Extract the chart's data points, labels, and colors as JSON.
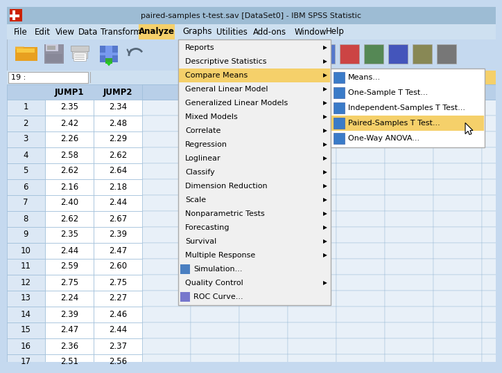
{
  "title_bar": "paired-samples t-test.sav [DataSet0] - IBM SPSS Statistic",
  "title_bar_bg": "#9dbcd4",
  "menubar_items": [
    "File",
    "Edit",
    "View",
    "Data",
    "Transform",
    "Analyze",
    "Graphs",
    "Utilities",
    "Add-ons",
    "Window",
    "Help"
  ],
  "menubar_x": [
    10,
    40,
    70,
    103,
    135,
    193,
    253,
    302,
    355,
    415,
    460
  ],
  "analyze_menu_items": [
    {
      "label": "Reports",
      "has_arrow": true,
      "icon": false
    },
    {
      "label": "Descriptive Statistics",
      "has_arrow": true,
      "icon": false
    },
    {
      "label": "Compare Means",
      "has_arrow": true,
      "highlighted": true,
      "icon": false
    },
    {
      "label": "General Linear Model",
      "has_arrow": true,
      "icon": false
    },
    {
      "label": "Generalized Linear Models",
      "has_arrow": true,
      "icon": false
    },
    {
      "label": "Mixed Models",
      "has_arrow": true,
      "icon": false
    },
    {
      "label": "Correlate",
      "has_arrow": true,
      "icon": false
    },
    {
      "label": "Regression",
      "has_arrow": true,
      "icon": false
    },
    {
      "label": "Loglinear",
      "has_arrow": true,
      "icon": false
    },
    {
      "label": "Classify",
      "has_arrow": true,
      "icon": false
    },
    {
      "label": "Dimension Reduction",
      "has_arrow": true,
      "icon": false
    },
    {
      "label": "Scale",
      "has_arrow": true,
      "icon": false
    },
    {
      "label": "Nonparametric Tests",
      "has_arrow": true,
      "icon": false
    },
    {
      "label": "Forecasting",
      "has_arrow": true,
      "icon": false
    },
    {
      "label": "Survival",
      "has_arrow": true,
      "icon": false
    },
    {
      "label": "Multiple Response",
      "has_arrow": true,
      "icon": false
    },
    {
      "label": "Simulation...",
      "has_arrow": false,
      "icon": true,
      "icon_color": "#4a7fc1"
    },
    {
      "label": "Quality Control",
      "has_arrow": true,
      "icon": false
    },
    {
      "label": "ROC Curve...",
      "has_arrow": false,
      "icon": true,
      "icon_color": "#7777cc"
    }
  ],
  "compare_means_submenu": [
    {
      "label": "Means...",
      "icon_color": "#3a7bc8"
    },
    {
      "label": "One-Sample T Test...",
      "icon_color": "#3a7bc8"
    },
    {
      "label": "Independent-Samples T Test...",
      "icon_color": "#3a7bc8"
    },
    {
      "label": "Paired-Samples T Test...",
      "icon_color": "#3a7bc8",
      "highlighted": true
    },
    {
      "label": "One-Way ANOVA...",
      "icon_color": "#3a7bc8"
    }
  ],
  "spreadsheet_headers": [
    "",
    "JUMP1",
    "JUMP2"
  ],
  "spreadsheet_rows": [
    [
      1,
      2.35,
      2.34
    ],
    [
      2,
      2.42,
      2.48
    ],
    [
      3,
      2.26,
      2.29
    ],
    [
      4,
      2.58,
      2.62
    ],
    [
      5,
      2.62,
      2.64
    ],
    [
      6,
      2.16,
      2.18
    ],
    [
      7,
      2.4,
      2.44
    ],
    [
      8,
      2.62,
      2.67
    ],
    [
      9,
      2.35,
      2.39
    ],
    [
      10,
      2.44,
      2.47
    ],
    [
      11,
      2.59,
      2.6
    ],
    [
      12,
      2.75,
      2.75
    ],
    [
      13,
      2.24,
      2.27
    ],
    [
      14,
      2.39,
      2.46
    ],
    [
      15,
      2.47,
      2.44
    ],
    [
      16,
      2.36,
      2.37
    ],
    [
      17,
      2.51,
      2.56
    ]
  ],
  "bg_color": "#c5d9ef",
  "menu_bg": "#f0f0f0",
  "menu_highlight_bg": "#f5d06a",
  "analyze_highlight_bg": "#f5d06a",
  "grid_line_color": "#9bbcd8",
  "header_bg": "#b8cfe8",
  "row_num_bg": "#dce8f5",
  "cell_bg": "#ffffff",
  "toolbar_bg": "#c5d9ef",
  "menubar_bg": "#cee0f0"
}
